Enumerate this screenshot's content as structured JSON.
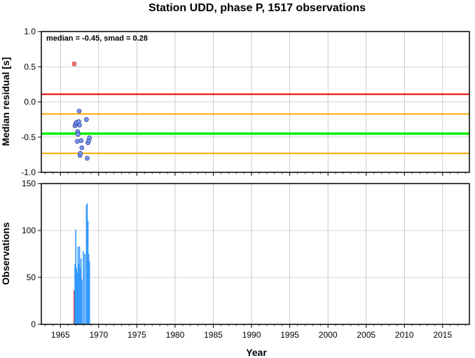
{
  "title": "Station UDD, phase P, 1517 observations",
  "colors": {
    "residual_point": "#7799ee",
    "outlier_point": "#ff7777",
    "median_line": "#00ee00",
    "smad_band": "#ffaa00",
    "limit_line": "#dd0000",
    "obs_bar": "#3399ff",
    "obs_bar_early": "#cc2222",
    "grid": "#aaaaaa"
  },
  "chart_data": [
    {
      "type": "scatter",
      "name": "residuals",
      "ylabel": "Median residual [s]",
      "annotation": "median = -0.45, smad = 0.28",
      "xlim": [
        1962.5,
        2018.5
      ],
      "ylim": [
        -1.0,
        1.0
      ],
      "xticks": [
        1965,
        1970,
        1975,
        1980,
        1985,
        1990,
        1995,
        2000,
        2005,
        2010,
        2015
      ],
      "yticks": [
        -1.0,
        -0.5,
        0.0,
        0.5,
        1.0
      ],
      "ytick_labels": [
        "-1.0",
        "-0.5",
        "0.0",
        "0.5",
        "1.0"
      ],
      "grid": true,
      "hlines": [
        {
          "role": "median",
          "y": -0.45
        },
        {
          "role": "smad_upper",
          "y": -0.17
        },
        {
          "role": "smad_lower",
          "y": -0.73
        },
        {
          "role": "limit",
          "y": 0.11
        }
      ],
      "points": [
        {
          "x": 1966.8,
          "y": 0.54,
          "outlier": true
        },
        {
          "x": 1966.9,
          "y": -0.34
        },
        {
          "x": 1967.0,
          "y": -0.31
        },
        {
          "x": 1967.1,
          "y": -0.29
        },
        {
          "x": 1967.2,
          "y": -0.56
        },
        {
          "x": 1967.25,
          "y": -0.42
        },
        {
          "x": 1967.3,
          "y": -0.46
        },
        {
          "x": 1967.4,
          "y": -0.28
        },
        {
          "x": 1967.45,
          "y": -0.13
        },
        {
          "x": 1967.5,
          "y": -0.33
        },
        {
          "x": 1967.55,
          "y": -0.76
        },
        {
          "x": 1967.6,
          "y": -0.73
        },
        {
          "x": 1967.7,
          "y": -0.55
        },
        {
          "x": 1967.8,
          "y": -0.65
        },
        {
          "x": 1968.4,
          "y": -0.25
        },
        {
          "x": 1968.5,
          "y": -0.8
        },
        {
          "x": 1968.6,
          "y": -0.58
        },
        {
          "x": 1968.7,
          "y": -0.55
        },
        {
          "x": 1968.8,
          "y": -0.51
        }
      ]
    },
    {
      "type": "bar",
      "name": "observations",
      "ylabel": "Observations",
      "xlabel": "Year",
      "xlim": [
        1962.5,
        2018.5
      ],
      "ylim": [
        0,
        150
      ],
      "xticks": [
        1965,
        1970,
        1975,
        1980,
        1985,
        1990,
        1995,
        2000,
        2005,
        2010,
        2015
      ],
      "yticks": [
        0,
        50,
        100,
        150
      ],
      "grid": true,
      "bars": [
        {
          "x": 1966.8,
          "y": 36,
          "early": true
        },
        {
          "x": 1966.9,
          "y": 64
        },
        {
          "x": 1967.0,
          "y": 101
        },
        {
          "x": 1967.1,
          "y": 60
        },
        {
          "x": 1967.2,
          "y": 55
        },
        {
          "x": 1967.3,
          "y": 83
        },
        {
          "x": 1967.4,
          "y": 65
        },
        {
          "x": 1967.5,
          "y": 83
        },
        {
          "x": 1967.6,
          "y": 60
        },
        {
          "x": 1967.7,
          "y": 70
        },
        {
          "x": 1967.8,
          "y": 48
        },
        {
          "x": 1968.0,
          "y": 78
        },
        {
          "x": 1968.2,
          "y": 75
        },
        {
          "x": 1968.4,
          "y": 127
        },
        {
          "x": 1968.5,
          "y": 129
        },
        {
          "x": 1968.6,
          "y": 110
        },
        {
          "x": 1968.7,
          "y": 75
        },
        {
          "x": 1968.8,
          "y": 67
        }
      ]
    }
  ]
}
